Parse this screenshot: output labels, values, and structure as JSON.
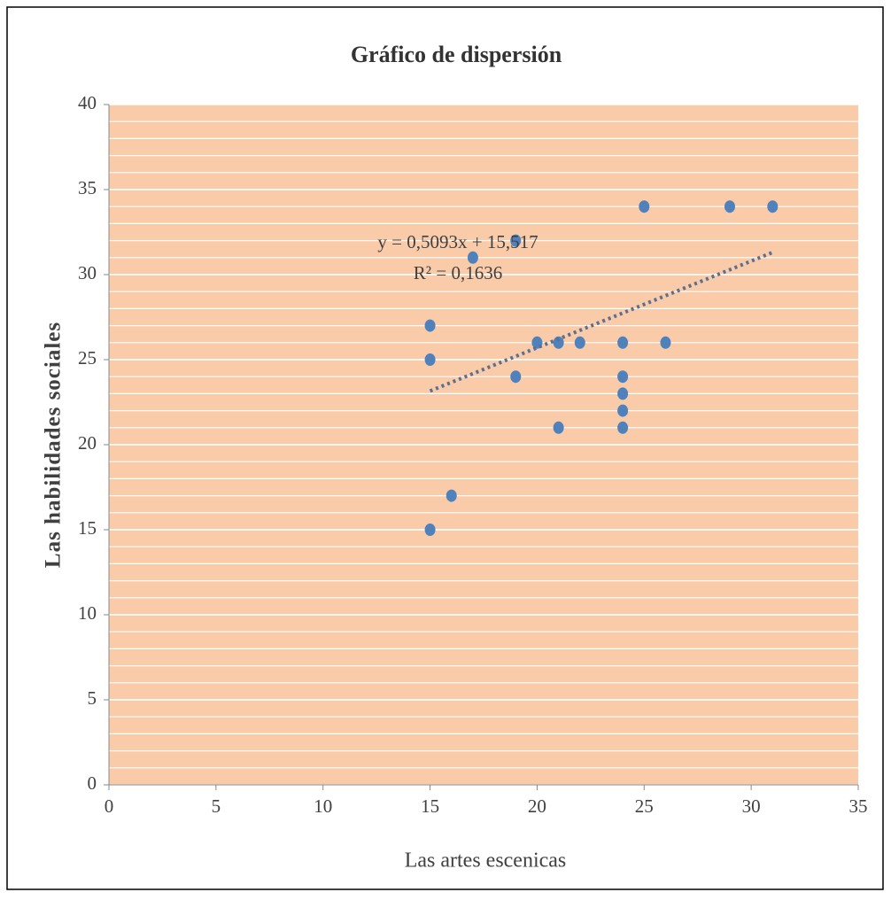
{
  "chart_data": {
    "type": "scatter",
    "title": "Gráfico de dispersión",
    "x_label": "Las artes escenicas",
    "y_label": "Las habilidades sociales",
    "series": [
      {
        "name": "Las habilidades sociales",
        "color": "#4f81bd",
        "x": [
          15,
          15,
          15,
          16,
          17,
          19,
          19,
          20,
          21,
          21,
          22,
          24,
          24,
          24,
          24,
          24,
          25,
          26,
          29,
          31
        ],
        "values": [
          27,
          25,
          15,
          17,
          31,
          32,
          24,
          26,
          26,
          21,
          26,
          26,
          24,
          23,
          22,
          21,
          34,
          26,
          34,
          34
        ]
      }
    ],
    "trendline": {
      "equation": "y = 0,5093x + 15,517",
      "r_squared": "R² = 0,1636",
      "slope": 0.5093,
      "intercept": 15.517,
      "color": "#5b6f8f"
    },
    "xlim": [
      0,
      35
    ],
    "xticks": [
      0,
      5,
      10,
      15,
      20,
      25,
      30,
      35
    ],
    "ylim": [
      0,
      40
    ],
    "yticks": [
      0,
      5,
      10,
      15,
      20,
      25,
      30,
      35,
      40
    ],
    "grid": true,
    "minor_grid": 1,
    "plot_background": "#f9cba8"
  }
}
